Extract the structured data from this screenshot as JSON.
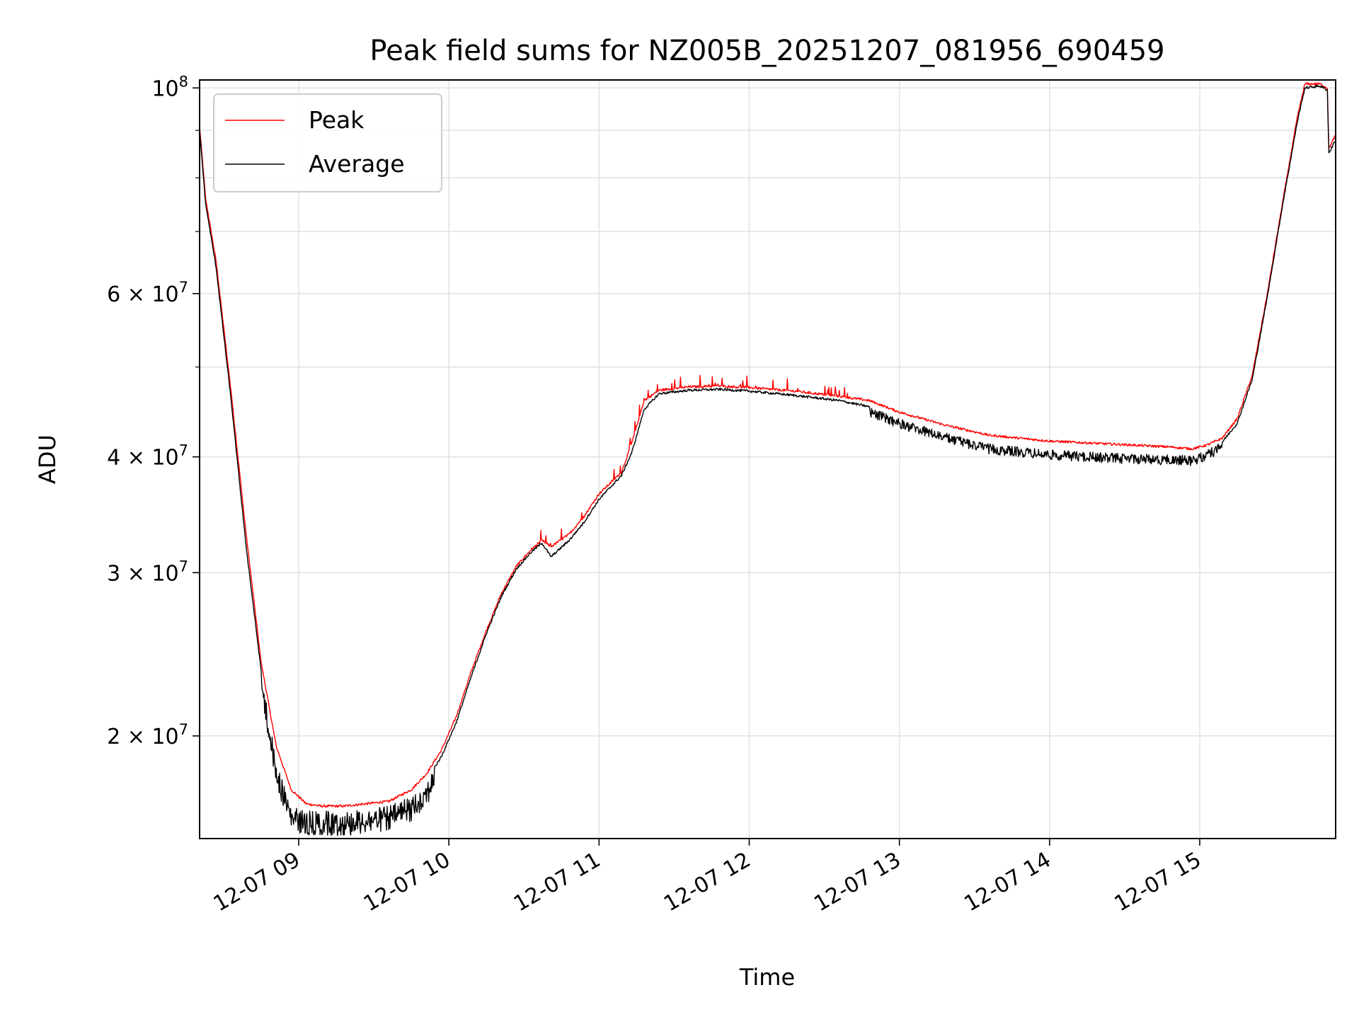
{
  "chart_data": {
    "type": "line",
    "title": "Peak field sums for NZ005B_20251207_081956_690459",
    "xlabel": "Time",
    "ylabel": "ADU",
    "y_scale": "log",
    "ylim": [
      15500000,
      102000000
    ],
    "xlim_hours": [
      8.34,
      15.905
    ],
    "grid": true,
    "legend_position": "upper-left",
    "x_ticks": [
      {
        "value": 9,
        "label": "12-07 09"
      },
      {
        "value": 10,
        "label": "12-07 10"
      },
      {
        "value": 11,
        "label": "12-07 11"
      },
      {
        "value": 12,
        "label": "12-07 12"
      },
      {
        "value": 13,
        "label": "12-07 13"
      },
      {
        "value": 14,
        "label": "12-07 14"
      },
      {
        "value": 15,
        "label": "12-07 15"
      }
    ],
    "y_ticks": [
      {
        "value": 20000000,
        "mantissa": "2",
        "base": "10",
        "exp": "7"
      },
      {
        "value": 30000000,
        "mantissa": "3",
        "base": "10",
        "exp": "7"
      },
      {
        "value": 40000000,
        "mantissa": "4",
        "base": "10",
        "exp": "7"
      },
      {
        "value": 60000000,
        "mantissa": "6",
        "base": "10",
        "exp": "7"
      },
      {
        "value": 100000000,
        "mantissa": "",
        "base": "10",
        "exp": "8"
      }
    ],
    "y_minor_ticks": [
      50000000,
      70000000,
      80000000,
      90000000
    ],
    "series": [
      {
        "name": "Peak",
        "color": "#ff0000",
        "x_hours": [
          8.34,
          8.38,
          8.45,
          8.55,
          8.65,
          8.75,
          8.85,
          8.95,
          9.05,
          9.15,
          9.3,
          9.45,
          9.6,
          9.75,
          9.85,
          9.95,
          10.05,
          10.15,
          10.25,
          10.35,
          10.45,
          10.55,
          10.62,
          10.68,
          10.8,
          10.9,
          11.0,
          11.15,
          11.22,
          11.3,
          11.4,
          11.6,
          11.8,
          12.0,
          12.3,
          12.6,
          12.8,
          13.0,
          13.3,
          13.6,
          14.0,
          14.4,
          14.8,
          14.95,
          15.05,
          15.15,
          15.25,
          15.35,
          15.45,
          15.55,
          15.65,
          15.7,
          15.8,
          15.85,
          15.86,
          15.905
        ],
        "values": [
          91000000,
          76000000,
          65000000,
          47000000,
          33000000,
          24000000,
          19500000,
          17500000,
          16900000,
          16800000,
          16800000,
          16900000,
          17000000,
          17500000,
          18200000,
          19300000,
          21000000,
          23500000,
          26000000,
          28500000,
          30500000,
          31800000,
          32500000,
          32000000,
          33000000,
          34500000,
          36500000,
          38500000,
          41500000,
          46000000,
          47200000,
          47600000,
          47700000,
          47500000,
          47100000,
          46500000,
          46000000,
          44700000,
          43300000,
          42200000,
          41600000,
          41300000,
          41000000,
          40800000,
          41200000,
          41900000,
          44000000,
          49000000,
          60000000,
          75000000,
          93000000,
          101000000,
          101000000,
          100000000,
          86000000,
          89000000
        ]
      },
      {
        "name": "Average",
        "color": "#000000",
        "x_hours": [
          8.34,
          8.38,
          8.45,
          8.55,
          8.65,
          8.75,
          8.85,
          8.95,
          9.05,
          9.15,
          9.3,
          9.45,
          9.6,
          9.75,
          9.85,
          9.95,
          10.05,
          10.15,
          10.25,
          10.35,
          10.45,
          10.55,
          10.62,
          10.68,
          10.8,
          10.9,
          11.0,
          11.15,
          11.22,
          11.3,
          11.4,
          11.6,
          11.8,
          12.0,
          12.3,
          12.6,
          12.8,
          13.0,
          13.3,
          13.6,
          14.0,
          14.4,
          14.8,
          14.95,
          15.05,
          15.15,
          15.25,
          15.35,
          15.45,
          15.55,
          15.65,
          15.7,
          15.8,
          15.85,
          15.86,
          15.905
        ],
        "values": [
          90000000,
          75000000,
          64000000,
          46000000,
          32000000,
          23500000,
          18800000,
          16800000,
          16600000,
          16600000,
          16600000,
          16700000,
          16800000,
          17200000,
          17900000,
          19000000,
          20700000,
          23200000,
          25800000,
          28300000,
          30300000,
          31600000,
          32300000,
          31200000,
          32500000,
          34000000,
          36000000,
          38200000,
          40500000,
          45000000,
          46800000,
          47200000,
          47300000,
          47100000,
          46600000,
          46000000,
          45300000,
          44000000,
          42500000,
          41300000,
          40700000,
          40400000,
          40200000,
          40100000,
          40700000,
          41500000,
          43500000,
          48500000,
          59500000,
          74500000,
          92000000,
          100000000,
          100500000,
          99500000,
          85000000,
          88000000
        ]
      }
    ]
  }
}
